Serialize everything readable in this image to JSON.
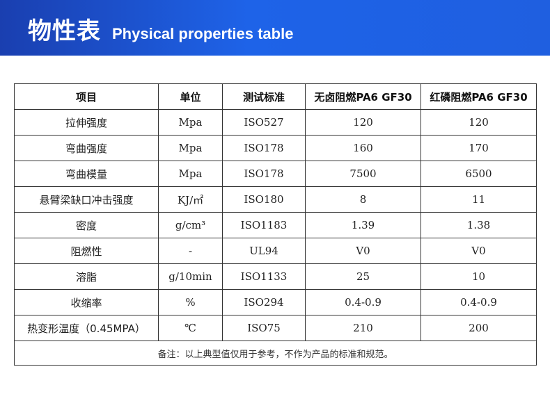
{
  "header": {
    "title_cn": "物性表",
    "title_en": "Physical properties table"
  },
  "table": {
    "columns": [
      "项目",
      "单位",
      "测试标准",
      "无卤阻燃PA6 GF30",
      "红磷阻燃PA6 GF30"
    ],
    "rows": [
      [
        "拉伸强度",
        "Mpa",
        "ISO527",
        "120",
        "120"
      ],
      [
        "弯曲强度",
        "Mpa",
        "ISO178",
        "160",
        "170"
      ],
      [
        "弯曲模量",
        "Mpa",
        "ISO178",
        "7500",
        "6500"
      ],
      [
        "悬臂梁缺口冲击强度",
        "KJ/㎡",
        "ISO180",
        "8",
        "11"
      ],
      [
        "密度",
        "g/cm³",
        "ISO1183",
        "1.39",
        "1.38"
      ],
      [
        "阻燃性",
        "-",
        "UL94",
        "V0",
        "V0"
      ],
      [
        "溶脂",
        "g/10min",
        "ISO1133",
        "25",
        "10"
      ],
      [
        "收缩率",
        "%",
        "ISO294",
        "0.4-0.9",
        "0.4-0.9"
      ],
      [
        "热变形温度（0.45MPA）",
        "℃",
        "ISO75",
        "210",
        "200"
      ]
    ],
    "note": "备注：以上典型值仅用于参考，不作为产品的标准和规范。"
  }
}
